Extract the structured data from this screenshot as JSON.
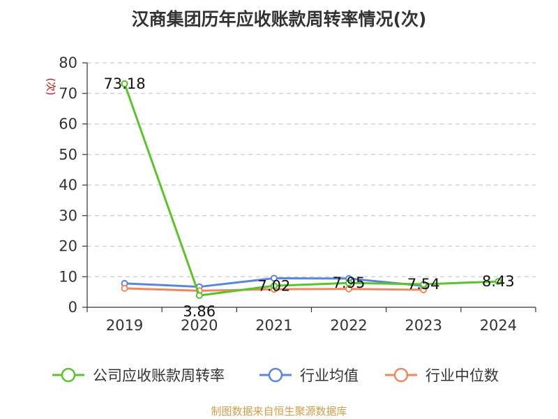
{
  "title": "汉商集团历年应收账款周转率情况(次)",
  "source": "制图数据来自恒生聚源数据库",
  "colors": {
    "background": "#ffffff",
    "axis": "#333333",
    "grid": "#cccccc",
    "unit": "#cc0000",
    "source": "#c8a04a"
  },
  "chart_data": {
    "type": "line",
    "title": "汉商集团历年应收账款周转率情况(次)",
    "ylabel": "(次)",
    "xlabel": "",
    "ylim": [
      0,
      80
    ],
    "yticks": [
      0,
      10,
      20,
      30,
      40,
      50,
      60,
      70,
      80
    ],
    "grid": true,
    "legend_position": "bottom",
    "categories": [
      "2019",
      "2020",
      "2021",
      "2022",
      "2023",
      "2024"
    ],
    "series": [
      {
        "name": "公司应收账款周转率",
        "color": "#5bc22d",
        "values": [
          73.18,
          3.86,
          7.02,
          7.95,
          7.54,
          8.43
        ],
        "labels": [
          "73.18",
          "3.86",
          "7.02",
          "7.95",
          "7.54",
          "8.43"
        ]
      },
      {
        "name": "行业均值",
        "color": "#5b85d8",
        "values": [
          7.8,
          6.7,
          9.5,
          9.4,
          7.0,
          null
        ]
      },
      {
        "name": "行业中位数",
        "color": "#f0875c",
        "values": [
          6.2,
          5.4,
          5.9,
          6.0,
          5.7,
          null
        ]
      }
    ]
  }
}
